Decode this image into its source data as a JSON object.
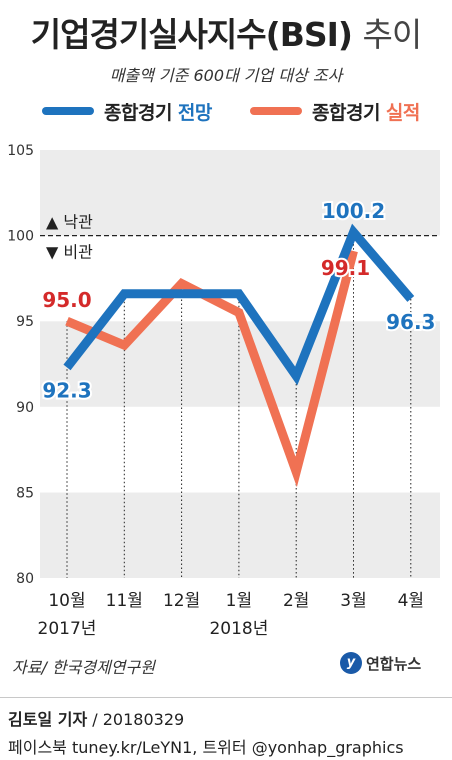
{
  "header": {
    "title": "기업경기실사지수(BSI)",
    "title_suffix": "추이",
    "subtitle": "매출액 기준 600대 기업 대상 조사"
  },
  "legend": [
    {
      "prefix": "종합경기",
      "highlight": "전망",
      "color": "#1e73be"
    },
    {
      "prefix": "종합경기",
      "highlight": "실적",
      "color": "#f07153"
    }
  ],
  "annotations": {
    "upper": "▲ 낙관",
    "lower": "▼ 비관"
  },
  "chart_data": {
    "type": "line",
    "categories": [
      "10월",
      "11월",
      "12월",
      "1월",
      "2월",
      "3월",
      "4월"
    ],
    "year_labels": [
      {
        "label": "2017년",
        "category_index": 0
      },
      {
        "label": "2018년",
        "category_index": 3
      }
    ],
    "ylim": [
      80,
      105
    ],
    "yticks": [
      80,
      85,
      90,
      95,
      100,
      105
    ],
    "reference_line": 100,
    "series": [
      {
        "name": "종합경기 전망",
        "color": "#1e73be",
        "values": [
          92.3,
          96.6,
          96.6,
          96.6,
          91.8,
          100.2,
          96.3
        ]
      },
      {
        "name": "종합경기 실적",
        "color": "#f07153",
        "values": [
          95.0,
          93.6,
          97.2,
          95.5,
          86.2,
          99.1,
          null
        ]
      }
    ],
    "data_labels": [
      {
        "series": 0,
        "index": 0,
        "text": "92.3",
        "color": "#1e73be",
        "pos": "below"
      },
      {
        "series": 1,
        "index": 0,
        "text": "95.0",
        "color": "#d42a2a",
        "pos": "above"
      },
      {
        "series": 0,
        "index": 5,
        "text": "100.2",
        "color": "#1e73be",
        "pos": "above"
      },
      {
        "series": 1,
        "index": 5,
        "text": "99.1",
        "color": "#d42a2a",
        "pos": "left"
      },
      {
        "series": 0,
        "index": 6,
        "text": "96.3",
        "color": "#1e73be",
        "pos": "below"
      }
    ]
  },
  "footer": {
    "source": "자료/ 한국경제연구원",
    "logo_text": "연합뉴스",
    "author": "김토일 기자",
    "date": "/ 20180329",
    "social": "페이스북 tuney.kr/LeYN1, 트위터 @yonhap_graphics"
  }
}
